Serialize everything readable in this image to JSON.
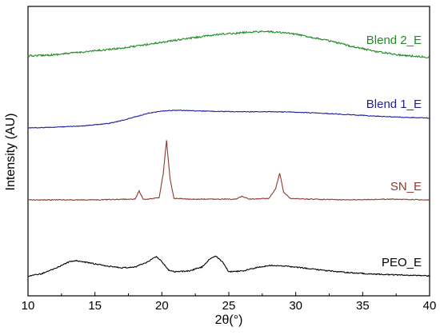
{
  "chart_data": {
    "type": "line",
    "title": "",
    "xlabel": "2θ(°)",
    "ylabel": "Intensity (AU)",
    "xlim": [
      10,
      40
    ],
    "xticks": [
      10,
      15,
      20,
      25,
      30,
      35,
      40
    ],
    "yticks": [],
    "grid": false,
    "legend": "labels placed at right end of each curve",
    "series": [
      {
        "name": "Blend 2_E",
        "color": "#228b22",
        "x": [
          10,
          12,
          14,
          16,
          18,
          20,
          22,
          24,
          26,
          27,
          28,
          29,
          30,
          32,
          34,
          36,
          38,
          40
        ],
        "y": [
          0.3,
          0.34,
          0.42,
          0.5,
          0.6,
          0.73,
          0.85,
          0.96,
          1.03,
          1.06,
          1.06,
          1.03,
          0.98,
          0.82,
          0.62,
          0.44,
          0.32,
          0.26
        ]
      },
      {
        "name": "Blend 1_E",
        "color": "#1f1fa0",
        "x": [
          10,
          12,
          14,
          16,
          17,
          18,
          19,
          20,
          21,
          22,
          24,
          26,
          28,
          30,
          32,
          34,
          36,
          38,
          40
        ],
        "y": [
          0.0,
          0.02,
          0.05,
          0.12,
          0.2,
          0.3,
          0.4,
          0.46,
          0.48,
          0.47,
          0.45,
          0.44,
          0.44,
          0.43,
          0.4,
          0.36,
          0.32,
          0.29,
          0.27
        ]
      },
      {
        "name": "SN_E",
        "color": "#8b3a2b",
        "x": [
          10,
          15,
          18,
          18.3,
          18.6,
          19,
          19.8,
          20.1,
          20.35,
          20.6,
          20.9,
          22,
          25.5,
          26,
          26.5,
          28,
          28.5,
          28.8,
          29.1,
          29.6,
          31,
          34,
          37,
          40
        ],
        "y": [
          0.0,
          0.0,
          0.01,
          0.12,
          0.01,
          0.01,
          0.03,
          0.35,
          0.8,
          0.3,
          0.02,
          0.01,
          0.01,
          0.05,
          0.01,
          0.02,
          0.15,
          0.36,
          0.1,
          0.02,
          0.01,
          0.0,
          0.01,
          0.0
        ]
      },
      {
        "name": "PEO_E",
        "color": "#000000",
        "x": [
          10,
          11,
          12,
          13,
          13.5,
          14,
          15,
          16,
          17,
          18,
          19,
          19.6,
          20,
          20.5,
          21,
          22,
          23,
          23.5,
          24,
          24.5,
          25,
          26,
          27,
          28,
          29,
          30,
          31,
          32,
          34,
          36,
          38,
          40
        ],
        "y": [
          0.0,
          0.05,
          0.18,
          0.34,
          0.38,
          0.36,
          0.3,
          0.24,
          0.2,
          0.22,
          0.36,
          0.48,
          0.36,
          0.14,
          0.1,
          0.12,
          0.22,
          0.4,
          0.5,
          0.36,
          0.1,
          0.12,
          0.2,
          0.26,
          0.25,
          0.22,
          0.18,
          0.14,
          0.08,
          0.04,
          0.02,
          0.0
        ]
      }
    ]
  }
}
